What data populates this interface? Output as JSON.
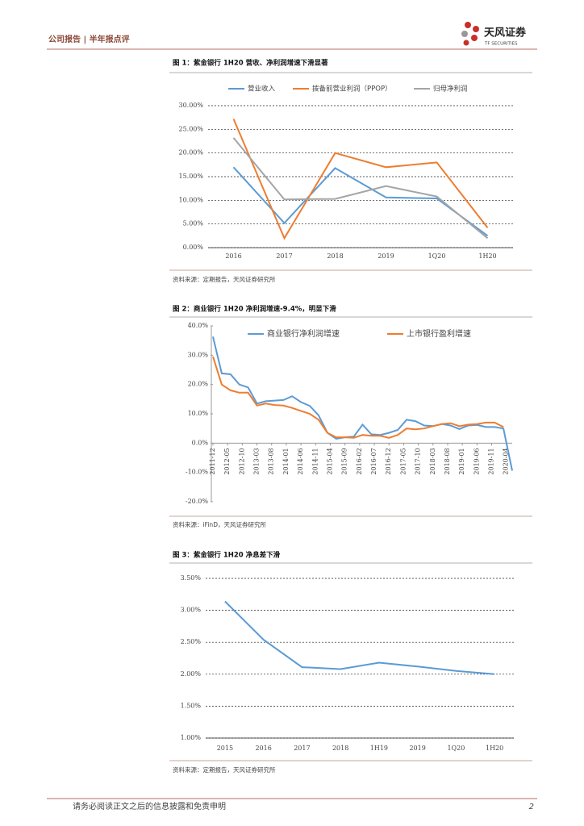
{
  "header": {
    "left": "公司报告 | 半年报点评",
    "logo": "天风证券",
    "logo_sub": "TF SECURITIES"
  },
  "chart_data": [
    {
      "type": "line",
      "title": "图 1：紫金银行 1H20 营收、净利润增速下滑显著",
      "categories": [
        "2016",
        "2017",
        "2018",
        "2019",
        "1Q20",
        "1H20"
      ],
      "series": [
        {
          "name": "营业收入",
          "color": "#5b9bd5",
          "values": [
            17.0,
            5.2,
            16.8,
            10.6,
            10.4,
            2.5
          ]
        },
        {
          "name": "拨备前营业利润（PPOP）",
          "color": "#ed7d31",
          "values": [
            27.2,
            2.0,
            20.0,
            17.0,
            18.0,
            4.2
          ]
        },
        {
          "name": "归母净利润",
          "color": "#a5a5a5",
          "values": [
            23.2,
            10.2,
            10.3,
            13.0,
            10.8,
            2.0
          ]
        }
      ],
      "ylim": [
        0,
        30
      ],
      "yticks": [
        {
          "value": 0,
          "label": "0.00%"
        },
        {
          "value": 5,
          "label": "5.00%"
        },
        {
          "value": 10,
          "label": "10.00%"
        },
        {
          "value": 15,
          "label": "15.00%"
        },
        {
          "value": 20,
          "label": "20.00%"
        },
        {
          "value": 25,
          "label": "25.00%"
        },
        {
          "value": 30,
          "label": "30.00%"
        }
      ],
      "grid": true,
      "legend": "top",
      "source": "资料来源：定期报告，天风证券研究所"
    },
    {
      "type": "line",
      "title": "图 2：商业银行 1H20 净利润增速-9.4%，明显下滑",
      "x": [
        "2011-12",
        "2012-03",
        "2012-06",
        "2012-09",
        "2012-12",
        "2013-03",
        "2013-06",
        "2013-09",
        "2013-12",
        "2014-03",
        "2014-06",
        "2014-09",
        "2014-12",
        "2015-03",
        "2015-06",
        "2015-09",
        "2015-12",
        "2016-03",
        "2016-06",
        "2016-09",
        "2016-12",
        "2017-03",
        "2017-06",
        "2017-09",
        "2017-12",
        "2018-03",
        "2018-06",
        "2018-09",
        "2018-12",
        "2019-03",
        "2019-06",
        "2019-09",
        "2019-12",
        "2020-03",
        "2020-06"
      ],
      "xlim": [
        "2011-12",
        "2020-06"
      ],
      "xticks": [
        "2011-12",
        "2012-05",
        "2012-10",
        "2013-03",
        "2013-08",
        "2014-01",
        "2014-06",
        "2014-11",
        "2015-04",
        "2015-09",
        "2016-02",
        "2016-07",
        "2016-12",
        "2017-05",
        "2017-10",
        "2018-03",
        "2018-08",
        "2019-01",
        "2019-06",
        "2019-11",
        "2020-04"
      ],
      "series": [
        {
          "name": "商业银行净利润增速",
          "color": "#5b9bd5",
          "values": [
            36.3,
            23.8,
            23.5,
            20.0,
            19.0,
            13.5,
            14.3,
            14.5,
            14.7,
            16.0,
            14.0,
            12.7,
            9.5,
            3.5,
            1.5,
            2.0,
            2.2,
            6.3,
            3.0,
            2.8,
            3.5,
            4.5,
            8.0,
            7.5,
            6.0,
            5.8,
            6.5,
            6.0,
            4.8,
            6.0,
            6.2,
            5.5,
            5.5,
            5.0,
            -9.4
          ]
        },
        {
          "name": "上市银行盈利增速",
          "color": "#ed7d31",
          "values": [
            29.5,
            20.0,
            18.0,
            17.2,
            17.2,
            12.8,
            13.5,
            13.0,
            12.8,
            12.0,
            11.0,
            10.0,
            8.0,
            3.5,
            2.0,
            2.0,
            1.8,
            2.8,
            2.5,
            2.5,
            1.8,
            2.8,
            5.0,
            4.7,
            5.0,
            5.8,
            6.5,
            6.8,
            5.8,
            6.3,
            6.5,
            7.0,
            7.0,
            5.5,
            null
          ]
        }
      ],
      "ylim": [
        -20,
        40
      ],
      "yticks": [
        {
          "value": -20,
          "label": "-20.0%"
        },
        {
          "value": -10,
          "label": "-10.0%"
        },
        {
          "value": 0,
          "label": "0.0%"
        },
        {
          "value": 10,
          "label": "10.0%"
        },
        {
          "value": 20,
          "label": "20.0%"
        },
        {
          "value": 30,
          "label": "30.0%"
        },
        {
          "value": 40,
          "label": "40.0%"
        }
      ],
      "grid": false,
      "legend": "top",
      "source": "资料来源：iFinD，天风证券研究所"
    },
    {
      "type": "line",
      "title": "图 3：紫金银行 1H20 净息差下滑",
      "categories": [
        "2015",
        "2016",
        "2017",
        "2018",
        "1H19",
        "2019",
        "1Q20",
        "1H20"
      ],
      "series": [
        {
          "color": "#5b9bd5",
          "values": [
            3.14,
            2.54,
            2.11,
            2.08,
            2.18,
            2.12,
            2.05,
            2.0
          ]
        }
      ],
      "ylim": [
        1,
        3.5
      ],
      "yticks": [
        {
          "value": 1,
          "label": "1.00%"
        },
        {
          "value": 1.5,
          "label": "1.50%"
        },
        {
          "value": 2,
          "label": "2.00%"
        },
        {
          "value": 2.5,
          "label": "2.50%"
        },
        {
          "value": 3,
          "label": "3.00%"
        },
        {
          "value": 3.5,
          "label": "3.50%"
        }
      ],
      "grid": true,
      "source": "资料来源：定期报告，天风证券研究所"
    }
  ],
  "footer": {
    "disclaimer": "请务必阅读正文之后的信息披露和免责申明",
    "page": "2"
  }
}
